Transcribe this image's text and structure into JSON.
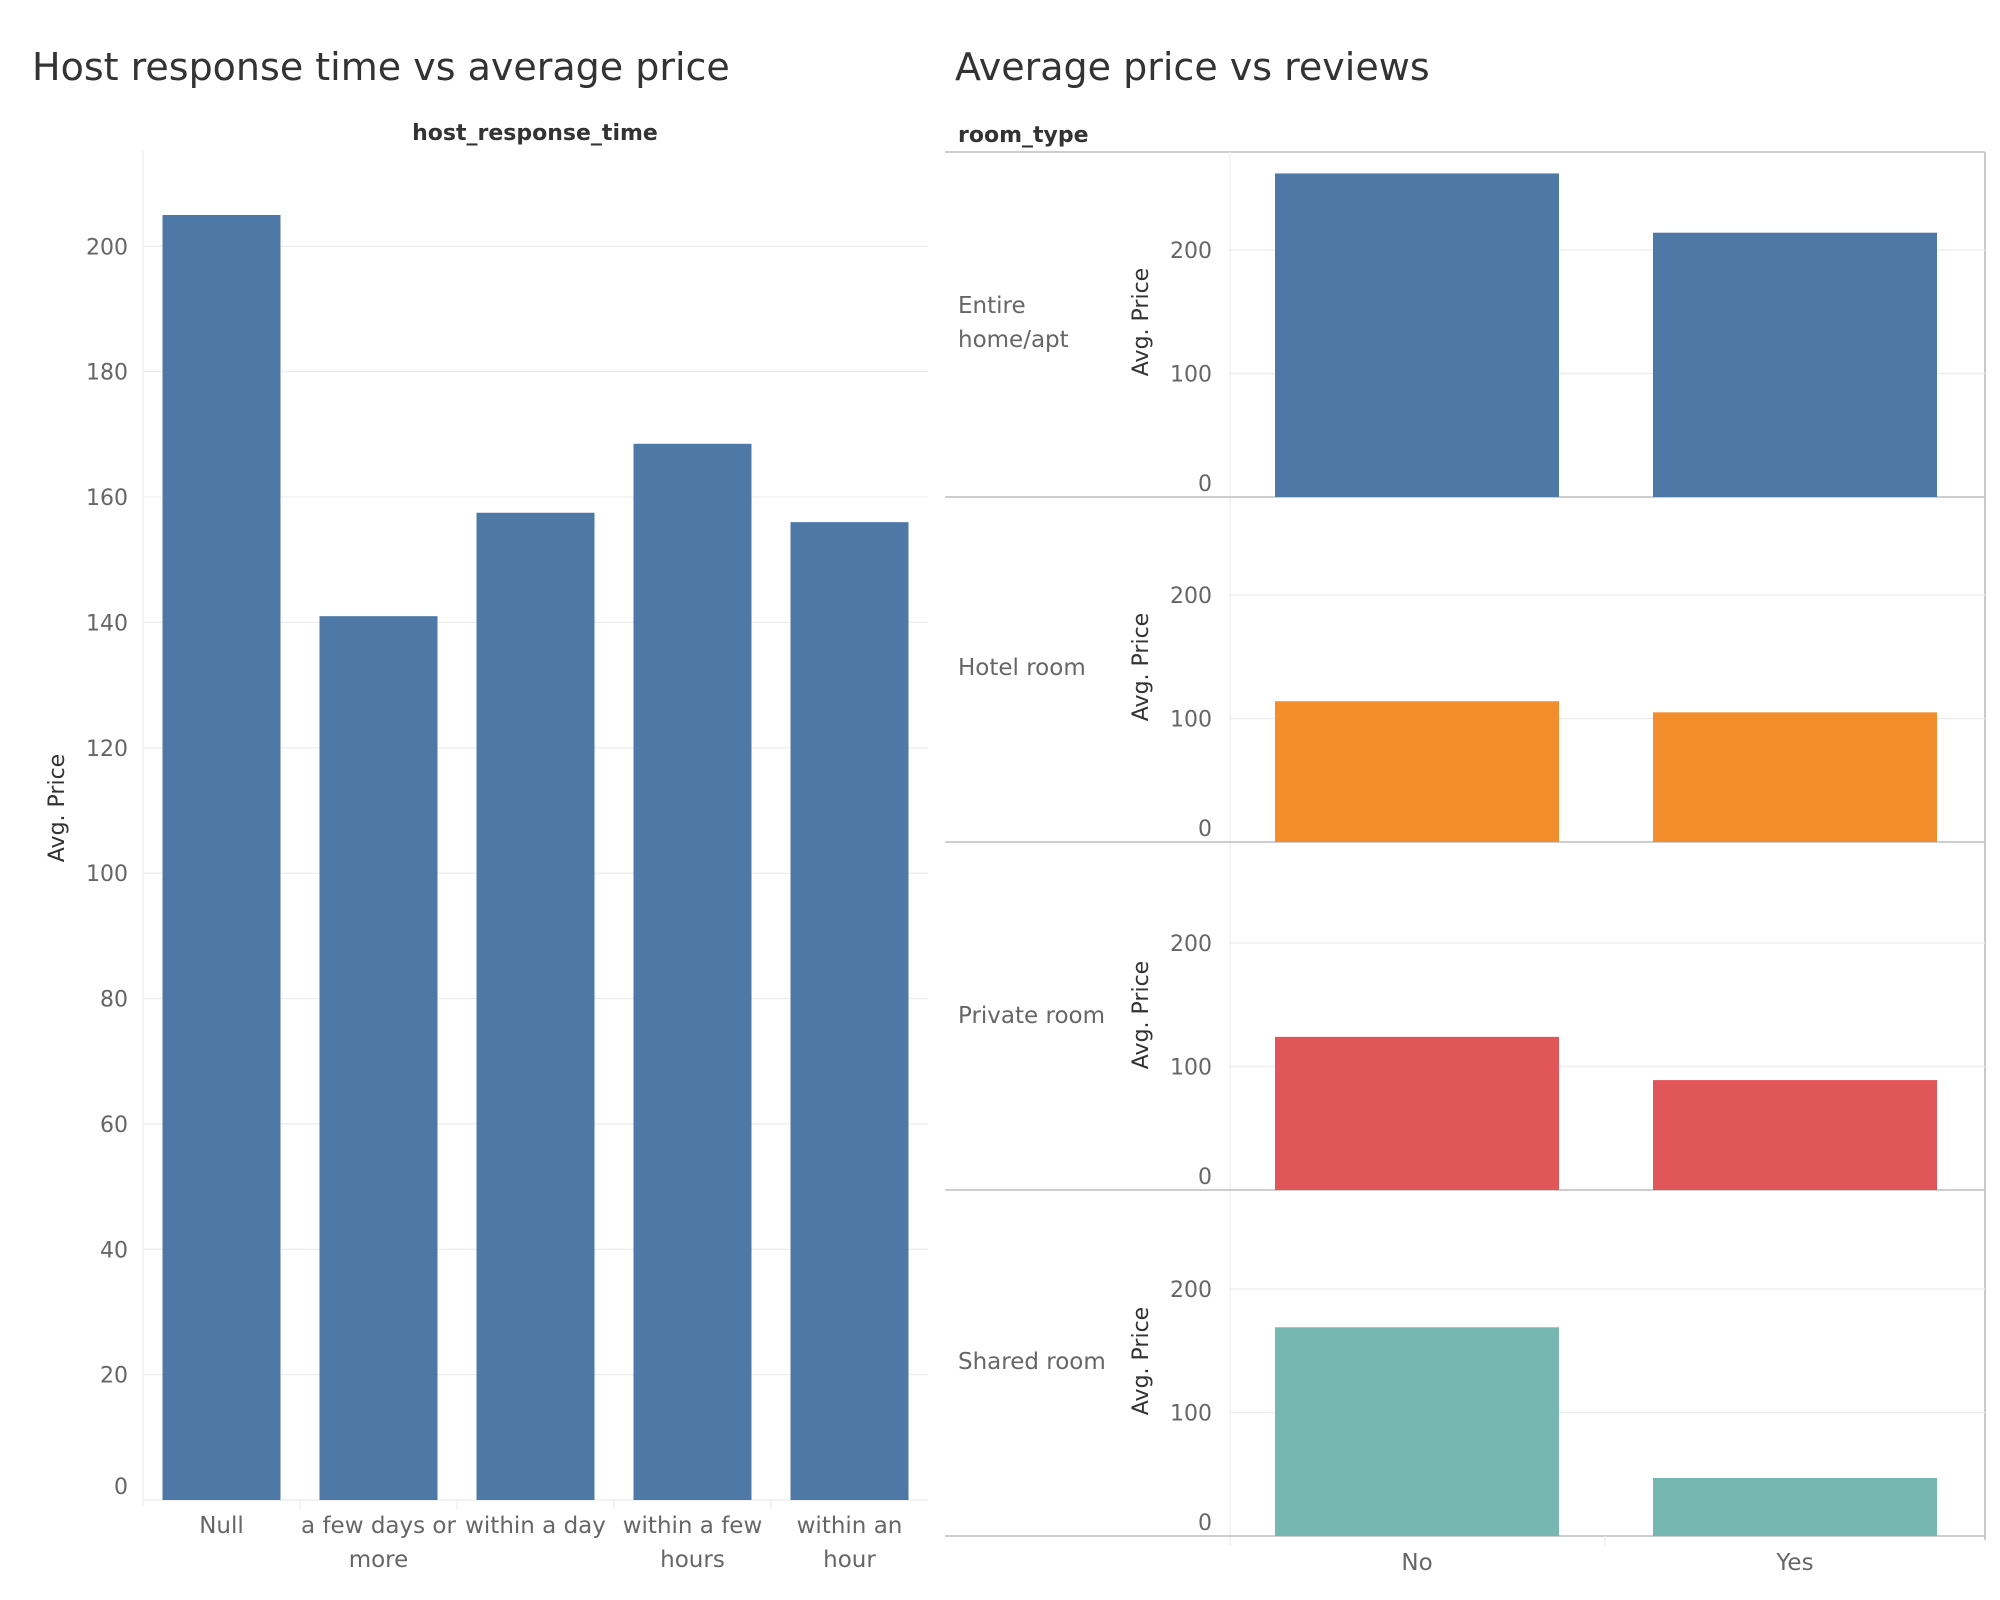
{
  "chart_data": [
    {
      "type": "bar",
      "title": "Host response time vs average price",
      "column_header": "host_response_time",
      "ylabel": "Avg. Price",
      "ylim": [
        0,
        215
      ],
      "yticks": [
        0,
        20,
        40,
        60,
        80,
        100,
        120,
        140,
        160,
        180,
        200
      ],
      "grid": true,
      "categories": [
        [
          "Null"
        ],
        [
          "a few days or",
          "more"
        ],
        [
          "within a day"
        ],
        [
          "within a few",
          "hours"
        ],
        [
          "within an",
          "hour"
        ]
      ],
      "values": [
        205,
        141,
        157.5,
        168.5,
        156
      ],
      "color": "#4e79a7"
    },
    {
      "type": "bar",
      "title": "Average price vs reviews",
      "row_header": "room_type",
      "ylabel": "Avg. Price",
      "ylim": [
        0,
        275
      ],
      "yticks": [
        0,
        100,
        200
      ],
      "grid": true,
      "categories": [
        "No",
        "Yes"
      ],
      "panels": [
        {
          "name": [
            "Entire",
            "home/apt"
          ],
          "color": "#4e79a7",
          "values": [
            262,
            214
          ]
        },
        {
          "name": [
            "Hotel room"
          ],
          "color": "#f28e2b",
          "values": [
            114,
            105
          ]
        },
        {
          "name": [
            "Private room"
          ],
          "color": "#e15759",
          "values": [
            124,
            89
          ]
        },
        {
          "name": [
            "Shared room"
          ],
          "color": "#76b7b2",
          "values": [
            169,
            47
          ]
        }
      ]
    }
  ]
}
